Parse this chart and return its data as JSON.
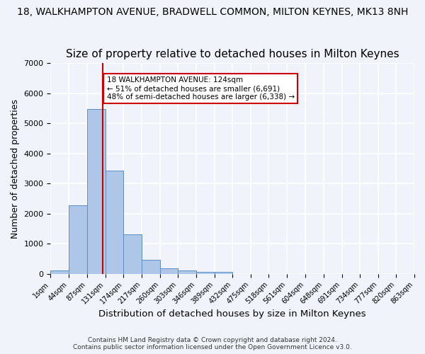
{
  "title": "18, WALKHAMPTON AVENUE, BRADWELL COMMON, MILTON KEYNES, MK13 8NH",
  "subtitle": "Size of property relative to detached houses in Milton Keynes",
  "xlabel": "Distribution of detached houses by size in Milton Keynes",
  "ylabel": "Number of detached properties",
  "bar_color": "#aec6e8",
  "bar_edge_color": "#5a8fc2",
  "annotation_line_color": "#cc0000",
  "annotation_property": "18 WALKHAMPTON AVENUE: 124sqm",
  "annotation_line1": "← 51% of detached houses are smaller (6,691)",
  "annotation_line2": "48% of semi-detached houses are larger (6,338) →",
  "annotation_box_color": "#ffffff",
  "annotation_box_edge": "#cc0000",
  "property_size_sqm": 124,
  "bin_edges": [
    1,
    44,
    87,
    131,
    174,
    217,
    260,
    303,
    346,
    389,
    432,
    475,
    518,
    561,
    604,
    648,
    691,
    734,
    777,
    820,
    863
  ],
  "bin_labels": [
    "1sqm",
    "44sqm",
    "87sqm",
    "131sqm",
    "174sqm",
    "217sqm",
    "260sqm",
    "303sqm",
    "346sqm",
    "389sqm",
    "432sqm",
    "475sqm",
    "518sqm",
    "561sqm",
    "604sqm",
    "648sqm",
    "691sqm",
    "734sqm",
    "777sqm",
    "820sqm",
    "863sqm"
  ],
  "bar_heights": [
    100,
    2270,
    5480,
    3440,
    1310,
    470,
    190,
    110,
    75,
    55,
    0,
    0,
    0,
    0,
    0,
    0,
    0,
    0,
    0,
    0
  ],
  "ylim": [
    0,
    7000
  ],
  "yticks": [
    0,
    1000,
    2000,
    3000,
    4000,
    5000,
    6000,
    7000
  ],
  "footer1": "Contains HM Land Registry data © Crown copyright and database right 2024.",
  "footer2": "Contains public sector information licensed under the Open Government Licence v3.0.",
  "background_color": "#f0f4fa",
  "grid_color": "#ffffff",
  "title_fontsize": 10,
  "subtitle_fontsize": 11
}
